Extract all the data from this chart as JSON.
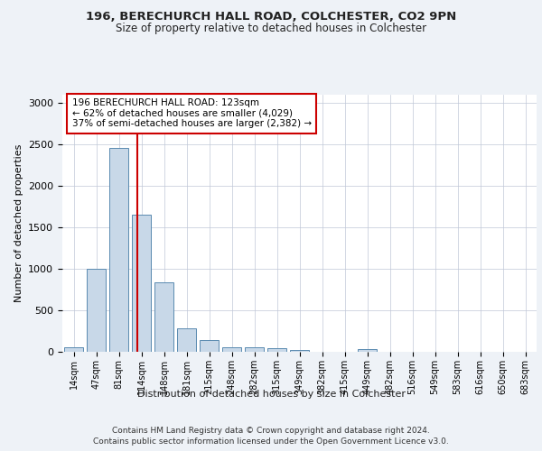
{
  "title_line1": "196, BERECHURCH HALL ROAD, COLCHESTER, CO2 9PN",
  "title_line2": "Size of property relative to detached houses in Colchester",
  "xlabel": "Distribution of detached houses by size in Colchester",
  "ylabel": "Number of detached properties",
  "footer_line1": "Contains HM Land Registry data © Crown copyright and database right 2024.",
  "footer_line2": "Contains public sector information licensed under the Open Government Licence v3.0.",
  "annotation_title": "196 BERECHURCH HALL ROAD: 123sqm",
  "annotation_line1": "← 62% of detached houses are smaller (4,029)",
  "annotation_line2": "37% of semi-detached houses are larger (2,382) →",
  "bar_labels": [
    "14sqm",
    "47sqm",
    "81sqm",
    "114sqm",
    "148sqm",
    "181sqm",
    "215sqm",
    "248sqm",
    "282sqm",
    "315sqm",
    "349sqm",
    "382sqm",
    "415sqm",
    "449sqm",
    "482sqm",
    "516sqm",
    "549sqm",
    "583sqm",
    "616sqm",
    "650sqm",
    "683sqm"
  ],
  "bar_values": [
    55,
    1000,
    2460,
    1650,
    840,
    285,
    140,
    55,
    55,
    45,
    25,
    0,
    0,
    30,
    0,
    0,
    0,
    0,
    0,
    0,
    0
  ],
  "bar_color": "#c8d8e8",
  "bar_edge_color": "#5a8ab0",
  "vline_x": 2.82,
  "vline_color": "#cc0000",
  "ylim": [
    0,
    3100
  ],
  "yticks": [
    0,
    500,
    1000,
    1500,
    2000,
    2500,
    3000
  ],
  "bg_color": "#eef2f7",
  "plot_bg_color": "#ffffff",
  "grid_color": "#c0c8d8"
}
